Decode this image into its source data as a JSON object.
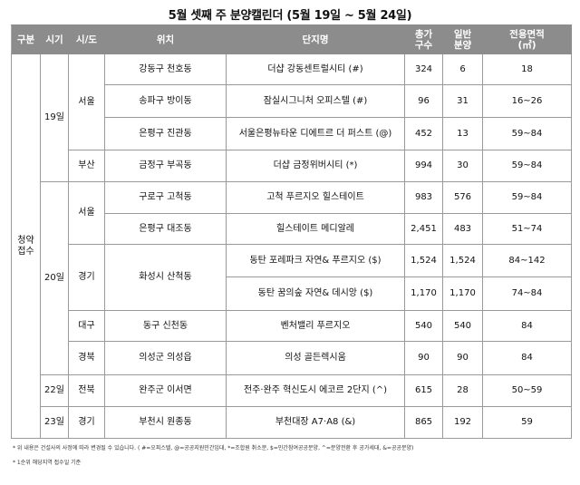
{
  "title": "5월 셋째 주 분양캘린더 (5월 19일 ~ 5월 24일)",
  "headers": {
    "type": "구분",
    "when": "시기",
    "region": "시/도",
    "location": "위치",
    "complex": "단지명",
    "total_a": "총가",
    "total_b": "구수",
    "general_a": "일반",
    "general_b": "분양",
    "area_a": "전용면적",
    "area_b": "(㎡)"
  },
  "type_label_a": "청약",
  "type_label_b": "접수",
  "dates": [
    "19일",
    "20일",
    "22일",
    "23일"
  ],
  "regions": [
    "서울",
    "부산",
    "서울",
    "경기",
    "대구",
    "경북",
    "전북",
    "경기"
  ],
  "rows": [
    {
      "location": "강동구 천호동",
      "complex": "더샵 강동센트럴시티 (#)",
      "total": "324",
      "general": "6",
      "area": "18"
    },
    {
      "location": "송파구 방이동",
      "complex": "잠실시그니처 오피스텔 (#)",
      "total": "96",
      "general": "31",
      "area": "16~26"
    },
    {
      "location": "은평구 진관동",
      "complex": "서울은평뉴타운 디에트르 더 퍼스트 (@)",
      "total": "452",
      "general": "13",
      "area": "59~84"
    },
    {
      "location": "금정구 부곡동",
      "complex": "더샵 금정위버시티 (*)",
      "total": "994",
      "general": "30",
      "area": "59~84"
    },
    {
      "location": "구로구 고척동",
      "complex": "고척 푸르지오 힐스테이트",
      "total": "983",
      "general": "576",
      "area": "59~84"
    },
    {
      "location": "은평구 대조동",
      "complex": "힐스테이트 메디알레",
      "total": "2,451",
      "general": "483",
      "area": "51~74"
    },
    {
      "location": "화성시 산척동",
      "complex": "동탄 포레파크 자연& 푸르지오 ($)",
      "total": "1,524",
      "general": "1,524",
      "area": "84~142"
    },
    {
      "location": "",
      "complex": "동탄 꿈의숲 자연& 데시앙 ($)",
      "total": "1,170",
      "general": "1,170",
      "area": "74~84"
    },
    {
      "location": "동구 신천동",
      "complex": "벤처밸리 푸르지오",
      "total": "540",
      "general": "540",
      "area": "84"
    },
    {
      "location": "의성군 의성읍",
      "complex": "의성 골든렉시움",
      "total": "90",
      "general": "90",
      "area": "84"
    },
    {
      "location": "완주군 이서면",
      "complex": "전주·완주 혁신도시 에코르 2단지 (^)",
      "total": "615",
      "general": "28",
      "area": "50~59"
    },
    {
      "location": "부천시 원종동",
      "complex": "부천대장 A7·A8 (&)",
      "total": "865",
      "general": "192",
      "area": "59"
    }
  ],
  "notes": [
    "* 위 내용은 건설사의 사정에 따라 변경될 수 있습니다. ( #=오피스텔, @=공공지원민간임대, *=조합원 취소분, $=민간참여공공분양, ^=분양전환 후 공가세대, &=공공분양)",
    "* 1순위 해당지역 접수일 기준"
  ]
}
